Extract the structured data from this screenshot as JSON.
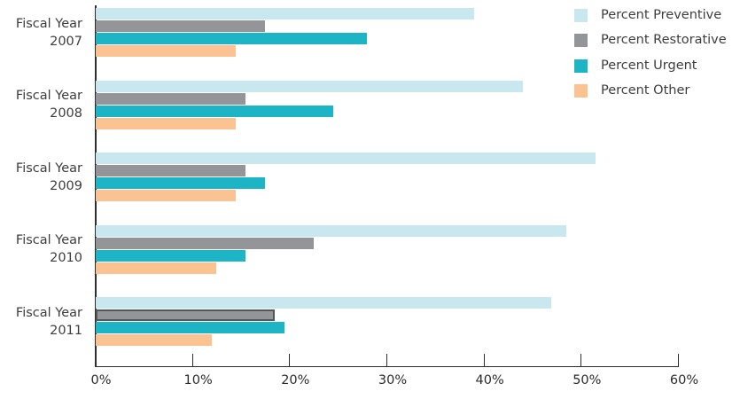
{
  "chart_data": {
    "type": "bar",
    "orientation": "horizontal",
    "title": "",
    "categories": [
      {
        "label_line1": "Fiscal Year",
        "label_line2": "2007"
      },
      {
        "label_line1": "Fiscal Year",
        "label_line2": "2008"
      },
      {
        "label_line1": "Fiscal Year",
        "label_line2": "2009"
      },
      {
        "label_line1": "Fiscal Year",
        "label_line2": "2010"
      },
      {
        "label_line1": "Fiscal Year",
        "label_line2": "2011"
      }
    ],
    "series": [
      {
        "name": "Percent Preventive",
        "color": "#c8e7ef",
        "values": [
          39.0,
          44.0,
          51.5,
          48.5,
          47.0
        ]
      },
      {
        "name": "Percent Restorative",
        "color": "#939598",
        "values": [
          17.5,
          15.5,
          15.5,
          22.5,
          18.5
        ]
      },
      {
        "name": "Percent Urgent",
        "color": "#1db4c5",
        "values": [
          28.0,
          24.5,
          17.5,
          15.5,
          19.5
        ]
      },
      {
        "name": "Percent Other",
        "color": "#fbc392",
        "values": [
          14.5,
          14.5,
          14.5,
          12.5,
          12.0
        ]
      }
    ],
    "x_axis": {
      "min": 0,
      "max": 60,
      "tick_labels": [
        "0%",
        "10%",
        "20%",
        "30%",
        "40%",
        "50%",
        "60%"
      ],
      "unit": "percent"
    },
    "legend": {
      "position": "top-right",
      "entries": [
        "Percent Preventive",
        "Percent Restorative",
        "Percent Urgent",
        "Percent Other"
      ]
    },
    "grid": false,
    "highlighted_bar": {
      "category_index": 4,
      "series_name": "Percent Restorative",
      "border_color": "#55565a"
    }
  }
}
